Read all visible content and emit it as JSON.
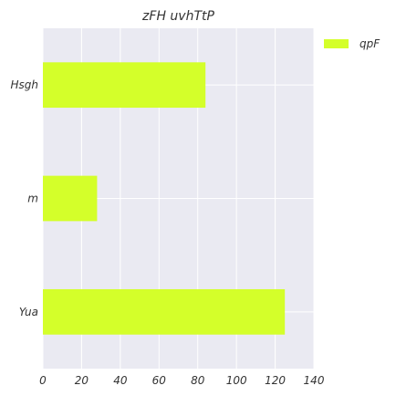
{
  "chart_data": {
    "type": "bar",
    "orientation": "horizontal",
    "title": "zFH  uvhTtP",
    "categories": [
      "Hsgh",
      "m",
      "Yua"
    ],
    "series": [
      {
        "name": "qpF",
        "values": [
          84,
          28,
          125
        ],
        "color": "#d4ff2a"
      }
    ],
    "xlim": [
      0,
      140
    ],
    "xticks": [
      0,
      20,
      40,
      60,
      80,
      100,
      120,
      140
    ],
    "grid": true,
    "legend": "top-right",
    "colors": {
      "plot_background": "#eaeaf2",
      "grid": "#ffffff",
      "text": "#333333"
    }
  }
}
